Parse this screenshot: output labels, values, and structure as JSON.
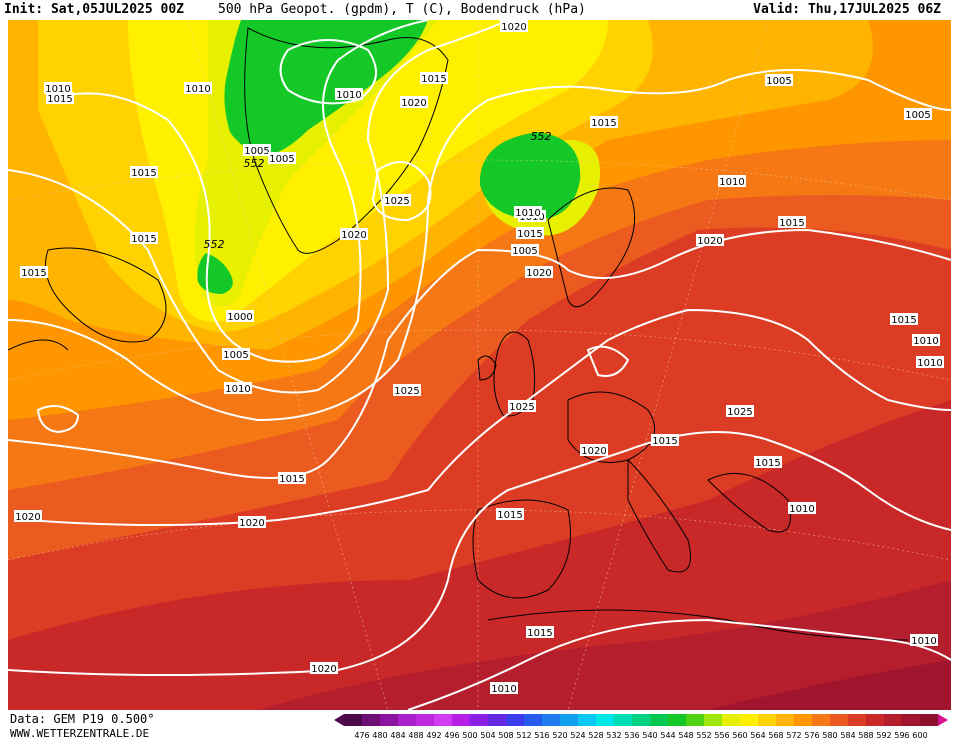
{
  "header": {
    "init": "Init: Sat,05JUL2025 00Z",
    "title": "500 hPa Geopot. (gpdm), T (C), Bodendruck (hPa)",
    "valid": "Valid: Thu,17JUL2025 06Z"
  },
  "footer": {
    "data": "Data: GEM P19 0.500°",
    "website": "WWW.WETTERZENTRALE.DE"
  },
  "legend": {
    "values": [
      "476",
      "480",
      "484",
      "488",
      "492",
      "496",
      "500",
      "504",
      "508",
      "512",
      "516",
      "520",
      "524",
      "528",
      "532",
      "536",
      "540",
      "544",
      "548",
      "552",
      "556",
      "560",
      "564",
      "568",
      "572",
      "576",
      "580",
      "584",
      "588",
      "592",
      "596",
      "600"
    ],
    "colors": [
      "#4b0a4b",
      "#6e0f78",
      "#8c14a0",
      "#a81ec8",
      "#c028e0",
      "#d03cf0",
      "#b41ee6",
      "#8c1ee6",
      "#6428e6",
      "#3c3cf0",
      "#285af0",
      "#1e7cf0",
      "#14a0f0",
      "#0ac8f0",
      "#00e6e6",
      "#00dcb4",
      "#00d282",
      "#00c850",
      "#14c828",
      "#50d214",
      "#a0e600",
      "#e6f000",
      "#fff000",
      "#ffd200",
      "#ffb400",
      "#ff9600",
      "#f57814",
      "#eb5a1e",
      "#dc3c23",
      "#c82828",
      "#b41e2d",
      "#a0142d",
      "#8c0f2d"
    ]
  },
  "pressure_labels": [
    "1010",
    "1010",
    "1015",
    "1015",
    "1010",
    "1005",
    "1005",
    "1015",
    "1020",
    "1020",
    "1025",
    "1020",
    "1015",
    "1015",
    "1010",
    "1005",
    "1005",
    "1010",
    "1015",
    "1020",
    "1015",
    "1010",
    "1010",
    "1005",
    "1020",
    "1025",
    "1025",
    "1025",
    "1020",
    "1015",
    "1015",
    "1015",
    "1015",
    "1010",
    "1015",
    "1010",
    "1010",
    "1020",
    "1020",
    "1015",
    "1020",
    "1015",
    "1000",
    "1005",
    "1010",
    "1010",
    "1020",
    "1010"
  ],
  "geopotential_labels": [
    "552",
    "552",
    "552"
  ]
}
